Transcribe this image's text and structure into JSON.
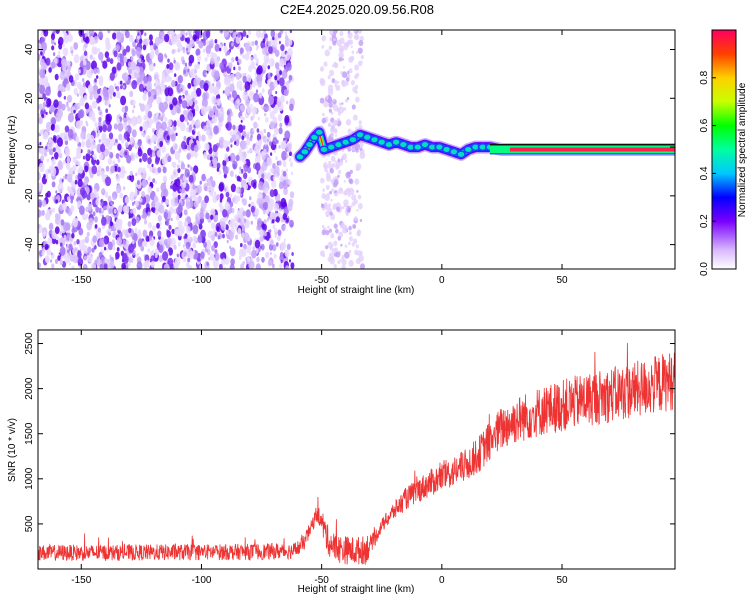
{
  "title": "C2E4.2025.020.09.56.R08",
  "chart_data": [
    {
      "type": "heatmap",
      "xlabel": "Height of straight line (km)",
      "ylabel": "Frequency (Hz)",
      "xlim": [
        -168,
        97
      ],
      "ylim": [
        -50,
        48
      ],
      "xticks": [
        -150,
        -100,
        -50,
        0,
        50
      ],
      "yticks": [
        -40,
        -20,
        0,
        20,
        40
      ],
      "noise_region_x": [
        -168,
        -62
      ],
      "sparse_noise_region_x": [
        -50,
        -33
      ],
      "ridge": {
        "x": [
          -59,
          -57,
          -55,
          -53,
          -51,
          -49,
          -46,
          -43,
          -40,
          -37,
          -34,
          -31,
          -28,
          -25,
          -22,
          -19,
          -16,
          -13,
          -10,
          -7,
          -4,
          -1,
          2,
          5,
          8,
          11,
          14,
          17,
          20,
          25,
          30,
          40,
          50,
          60,
          70,
          80,
          90,
          97
        ],
        "y": [
          -4,
          -2,
          1,
          4,
          6,
          -1,
          0,
          1,
          2,
          3,
          5,
          4,
          3,
          2,
          1,
          2,
          1,
          0,
          0,
          1,
          0,
          0,
          -1,
          -2,
          -3,
          -1,
          0,
          0,
          0,
          -1,
          -1,
          -1,
          -1,
          -1,
          -1,
          -1,
          -1,
          -1
        ]
      },
      "colorbar": {
        "label": "Normalized spectral amplitude",
        "ticks": [
          "0.0",
          "0.2",
          "0.4",
          "0.6",
          "0.8"
        ],
        "range": [
          0,
          1
        ]
      }
    },
    {
      "type": "line",
      "xlabel": "Height of straight line (km)",
      "ylabel": "SNR (10 * v/v)",
      "xlim": [
        -168,
        97
      ],
      "ylim": [
        0,
        2650
      ],
      "xticks": [
        -150,
        -100,
        -50,
        0,
        50
      ],
      "yticks": [
        500,
        1000,
        1500,
        2000,
        2500
      ],
      "color": "#ee3333",
      "series": [
        {
          "x": [
            -168,
            -140,
            -110,
            -80,
            -62,
            -58,
            -55,
            -52,
            -50,
            -47,
            -44,
            -40,
            -36,
            -32,
            -28,
            -25,
            -20,
            -15,
            -10,
            -5,
            0,
            5,
            10,
            15,
            20,
            25,
            30,
            40,
            50,
            60,
            70,
            80,
            90,
            97
          ],
          "y": [
            180,
            180,
            185,
            190,
            200,
            260,
            420,
            620,
            520,
            300,
            230,
            210,
            200,
            210,
            330,
            480,
            640,
            780,
            870,
            950,
            1020,
            1080,
            1150,
            1260,
            1420,
            1560,
            1640,
            1740,
            1810,
            1880,
            1930,
            1980,
            2050,
            2100
          ]
        }
      ]
    }
  ]
}
